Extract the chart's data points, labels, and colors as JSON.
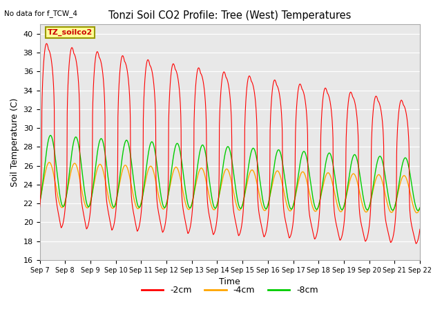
{
  "title": "Tonzi Soil CO2 Profile: Tree (West) Temperatures",
  "xlabel": "Time",
  "ylabel": "Soil Temperature (C)",
  "annotation": "No data for f_TCW_4",
  "box_label": "TZ_soilco2",
  "ylim": [
    16,
    41
  ],
  "yticks": [
    16,
    18,
    20,
    22,
    24,
    26,
    28,
    30,
    32,
    34,
    36,
    38,
    40
  ],
  "xtick_labels": [
    "Sep 7",
    "Sep 8",
    "Sep 9",
    "Sep 10",
    "Sep 11",
    "Sep 12",
    "Sep 13",
    "Sep 14",
    "Sep 15",
    "Sep 16",
    "Sep 17",
    "Sep 18",
    "Sep 19",
    "Sep 20",
    "Sep 21",
    "Sep 22"
  ],
  "line_colors": {
    "2cm": "#FF0000",
    "4cm": "#FFA500",
    "8cm": "#00CC00"
  },
  "background_color": "#E8E8E8",
  "fig_background": "#FFFFFF",
  "grid_color": "#FFFFFF",
  "legend_box_color": "#FFFF99",
  "legend_box_edge": "#999900"
}
